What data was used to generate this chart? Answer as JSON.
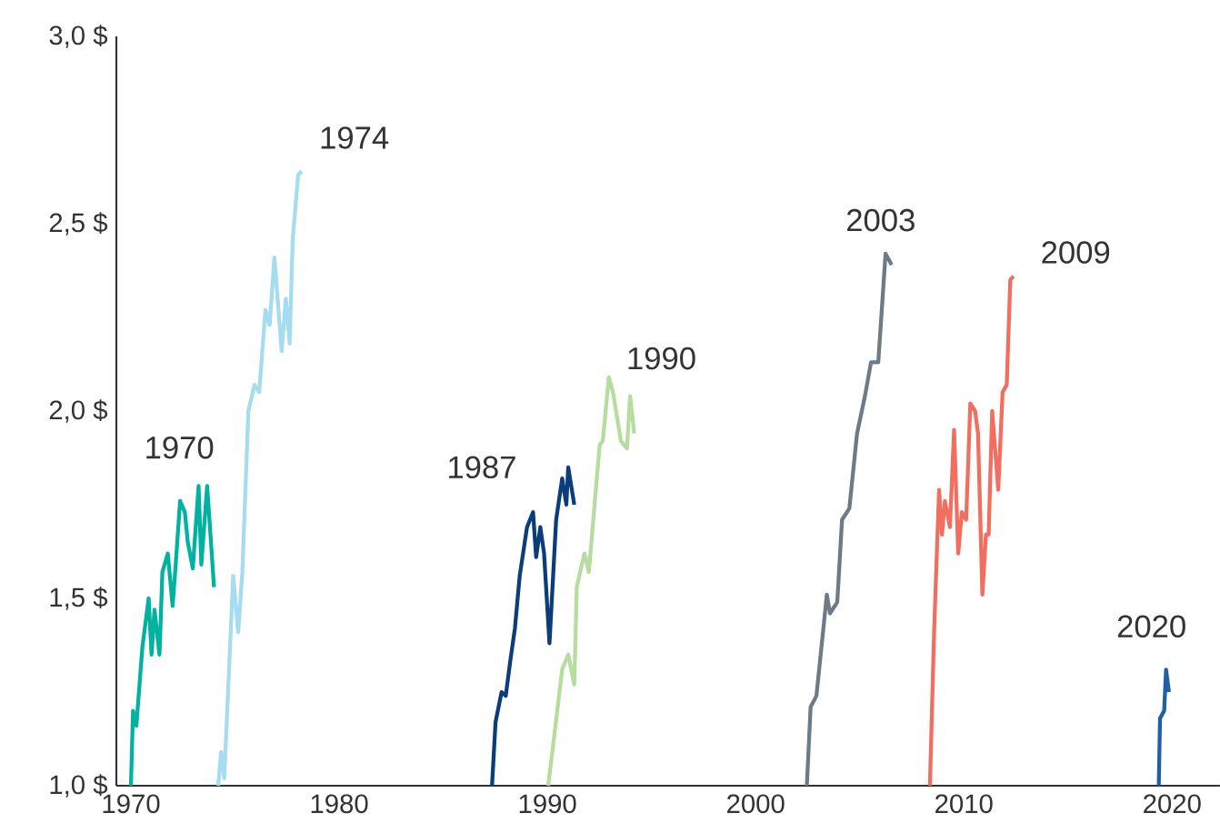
{
  "chart_data": {
    "type": "line",
    "xlim": [
      1969.3,
      2022.3
    ],
    "ylim": [
      1,
      3
    ],
    "xticks": [
      1970,
      1980,
      1990,
      2000,
      2010,
      2020
    ],
    "yticks": [
      {
        "value": 1,
        "label": "1,0 $"
      },
      {
        "value": 1.5,
        "label": "1,5 $"
      },
      {
        "value": 2,
        "label": "2,0 $"
      },
      {
        "value": 2.5,
        "label": "2,5 $"
      },
      {
        "value": 3,
        "label": "3,0 $"
      }
    ],
    "grid": false,
    "legend": false,
    "marker": "none",
    "line_style": "solid",
    "series": [
      {
        "name": "1970",
        "color": "#00b2a0",
        "x": [
          1970.0,
          1970.1,
          1970.26,
          1970.55,
          1970.85,
          1970.99,
          1971.13,
          1971.37,
          1971.51,
          1971.77,
          1972.0,
          1972.15,
          1972.36,
          1972.59,
          1972.73,
          1972.97,
          1973.25,
          1973.38,
          1973.66,
          1973.99
        ],
        "values": [
          1.0,
          1.2,
          1.16,
          1.37,
          1.5,
          1.35,
          1.47,
          1.35,
          1.57,
          1.62,
          1.48,
          1.59,
          1.76,
          1.73,
          1.65,
          1.58,
          1.8,
          1.59,
          1.8,
          1.53
        ]
      },
      {
        "name": "1974",
        "color": "#a6dcef",
        "x": [
          1974.19,
          1974.33,
          1974.48,
          1974.91,
          1975.15,
          1975.35,
          1975.64,
          1975.93,
          1976.16,
          1976.46,
          1976.66,
          1976.89,
          1977.24,
          1977.44,
          1977.62,
          1977.77,
          1978.03,
          1978.2
        ],
        "values": [
          1.0,
          1.09,
          1.02,
          1.56,
          1.41,
          1.57,
          2.0,
          2.07,
          2.05,
          2.27,
          2.23,
          2.41,
          2.16,
          2.3,
          2.18,
          2.46,
          2.63,
          2.64
        ]
      },
      {
        "name": "1987",
        "color": "#0b3d7a",
        "x": [
          1987.34,
          1987.51,
          1987.8,
          1988.0,
          1988.21,
          1988.44,
          1988.67,
          1989.02,
          1989.31,
          1989.46,
          1989.66,
          1989.84,
          1990.1,
          1990.42,
          1990.71,
          1990.91,
          1991.0,
          1991.29
        ],
        "values": [
          1.0,
          1.17,
          1.25,
          1.24,
          1.33,
          1.42,
          1.56,
          1.69,
          1.73,
          1.61,
          1.69,
          1.62,
          1.38,
          1.71,
          1.82,
          1.75,
          1.85,
          1.75
        ]
      },
      {
        "name": "1990",
        "color": "#b7dca0",
        "x": [
          1990.04,
          1990.71,
          1991.0,
          1991.29,
          1991.41,
          1991.78,
          1991.99,
          1992.51,
          1992.66,
          1992.95,
          1993.15,
          1993.53,
          1993.82,
          1993.97,
          1994.17
        ],
        "values": [
          1.0,
          1.31,
          1.35,
          1.27,
          1.53,
          1.62,
          1.57,
          1.91,
          1.92,
          2.09,
          2.05,
          1.92,
          1.9,
          2.04,
          1.94
        ]
      },
      {
        "name": "2003",
        "color": "#6e7b87",
        "x": [
          2002.46,
          2002.64,
          2002.92,
          2003.42,
          2003.57,
          2003.92,
          2004.15,
          2004.5,
          2004.87,
          2005.25,
          2005.54,
          2005.89,
          2006.24,
          2006.53
        ],
        "values": [
          1.0,
          1.21,
          1.24,
          1.51,
          1.46,
          1.49,
          1.71,
          1.74,
          1.94,
          2.04,
          2.13,
          2.13,
          2.42,
          2.39
        ]
      },
      {
        "name": "2009",
        "color": "#f26e5e",
        "x": [
          2008.37,
          2008.57,
          2008.81,
          2008.95,
          2009.09,
          2009.33,
          2009.53,
          2009.73,
          2009.9,
          2010.11,
          2010.31,
          2010.54,
          2010.68,
          2010.89,
          2011.06,
          2011.19,
          2011.36,
          2011.65,
          2011.86,
          2012.06,
          2012.23,
          2012.38
        ],
        "values": [
          1.0,
          1.41,
          1.79,
          1.67,
          1.76,
          1.69,
          1.95,
          1.62,
          1.73,
          1.71,
          2.02,
          2.0,
          1.94,
          1.51,
          1.67,
          1.67,
          2.0,
          1.79,
          2.05,
          2.07,
          2.35,
          2.36
        ]
      },
      {
        "name": "2020",
        "color": "#1f5fa8",
        "x": [
          2019.36,
          2019.42,
          2019.62,
          2019.71,
          2019.85
        ],
        "values": [
          1.0,
          1.18,
          1.2,
          1.31,
          1.25
        ]
      }
    ]
  }
}
